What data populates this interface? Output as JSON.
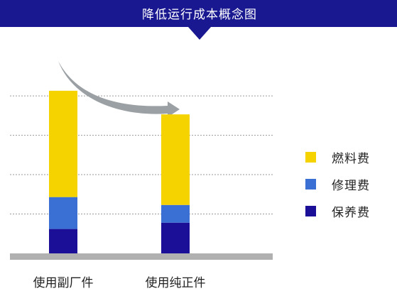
{
  "chart_data": {
    "type": "bar",
    "stacked": true,
    "title": "降低运行成本概念图",
    "categories": [
      "使用副厂件",
      "使用纯正件"
    ],
    "series": [
      {
        "name": "保养费",
        "color": "#1a0f96",
        "values": [
          0.62,
          0.78
        ]
      },
      {
        "name": "修理费",
        "color": "#3a6fd4",
        "values": [
          0.81,
          0.45
        ]
      },
      {
        "name": "燃料费",
        "color": "#f5d300",
        "values": [
          2.7,
          2.3
        ]
      }
    ],
    "ylim": [
      0,
      4.2
    ],
    "grid": true,
    "legend_position": "right",
    "annotation": "arrow"
  },
  "colors": {
    "banner": "#1a1890",
    "baseline": "#b0b0b0",
    "arrow": "#9aa0a4",
    "grid": "#9a9a9a"
  }
}
